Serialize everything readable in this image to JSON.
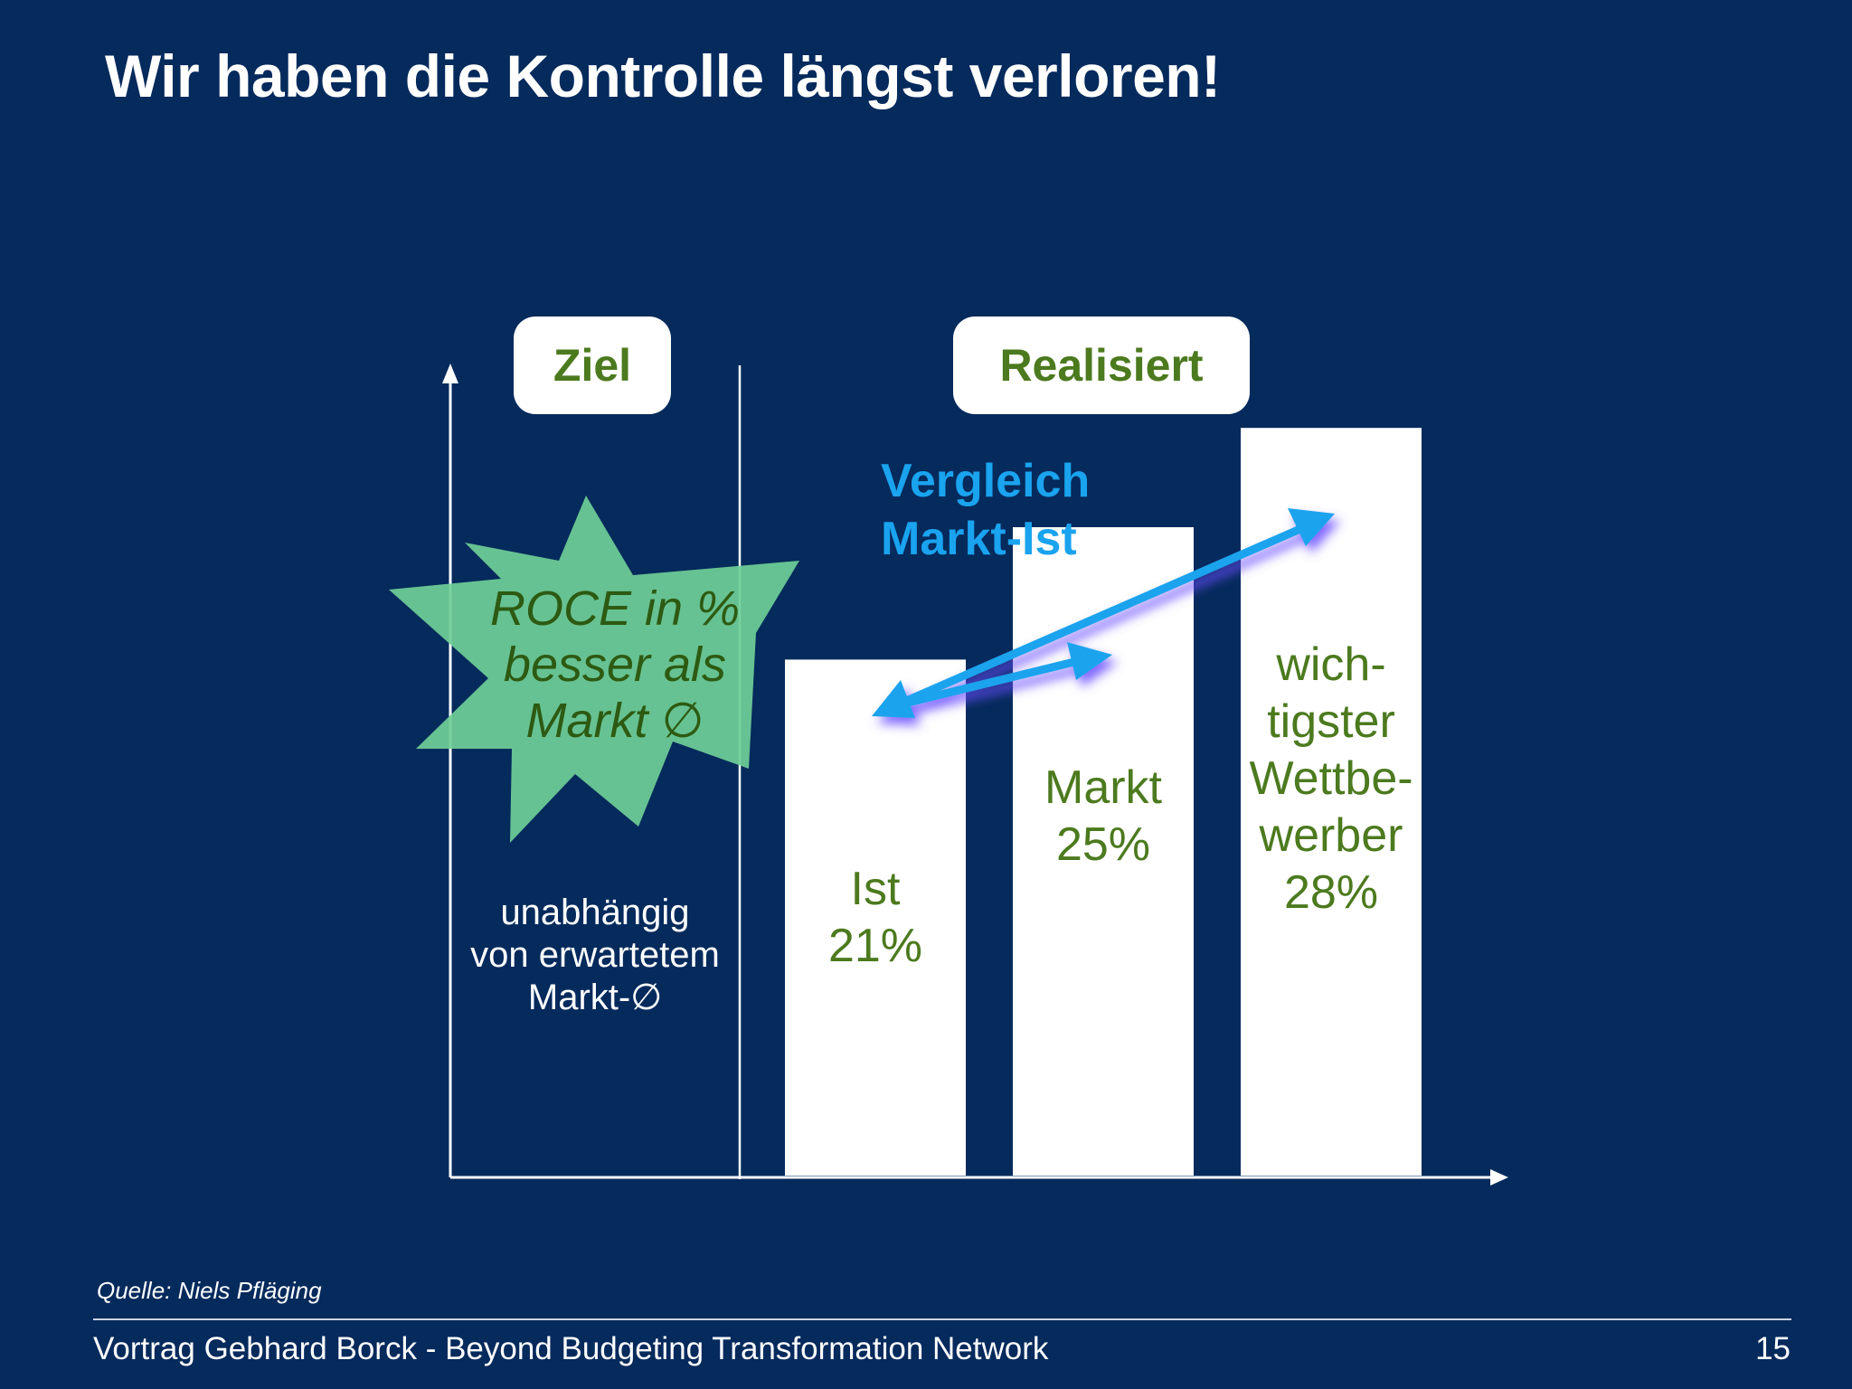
{
  "slide": {
    "title": "Wir haben die Kontrolle längst verloren!",
    "source": "Quelle: Niels Pfläging",
    "footer": "Vortrag Gebhard Borck - Beyond Budgeting Transformation Network",
    "page_number": "15"
  },
  "sections": {
    "target_label": "Ziel",
    "realized_label": "Realisiert"
  },
  "starburst": {
    "lines": [
      "ROCE in %",
      "besser als",
      "Markt ∅"
    ],
    "color": "#6fcf97"
  },
  "target_note": {
    "lines": [
      "unabhängig",
      "von erwartetem",
      "Markt-∅"
    ]
  },
  "comparison": {
    "lines": [
      "Vergleich",
      "Markt-Ist"
    ],
    "color": "#1aa3ee"
  },
  "colors": {
    "background": "#052a5c",
    "bar": "#ffffff",
    "label_green": "#4c7a1e"
  },
  "chart_data": {
    "type": "bar",
    "categories": [
      "Ist",
      "Markt",
      "wichtigster Wettbewerber"
    ],
    "values": [
      21,
      25,
      28
    ],
    "value_unit": "%",
    "bar_labels": [
      [
        "Ist",
        "21%"
      ],
      [
        "Markt",
        "25%"
      ],
      [
        "wich-",
        "tigster",
        "Wettbe-",
        "werber",
        "28%"
      ]
    ],
    "ylabel": "",
    "xlabel": "",
    "grid": false,
    "legend": "none"
  }
}
